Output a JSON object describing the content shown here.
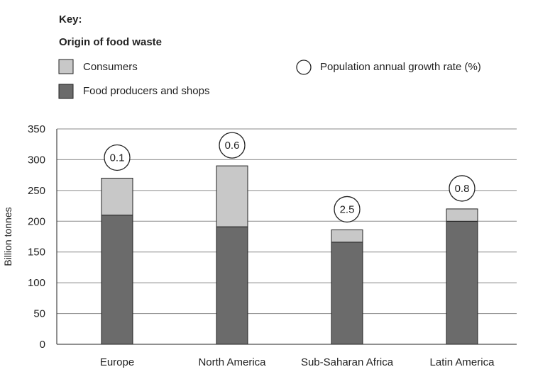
{
  "key": {
    "title": "Key:",
    "subtitle": "Origin of food waste",
    "items": [
      {
        "label": "Consumers",
        "color": "#c8c8c8",
        "shape": "square"
      },
      {
        "label": "Food producers and shops",
        "color": "#6b6b6b",
        "shape": "square"
      },
      {
        "label": "Population annual growth rate (%)",
        "color": "#ffffff",
        "shape": "circle"
      }
    ]
  },
  "chart_data": {
    "type": "bar",
    "stacked": true,
    "categories": [
      "Europe",
      "North America",
      "Sub-Saharan Africa",
      "Latin America"
    ],
    "series": [
      {
        "name": "Food producers and shops",
        "color": "#6b6b6b",
        "values": [
          210,
          191,
          166,
          200
        ]
      },
      {
        "name": "Consumers",
        "color": "#c8c8c8",
        "values": [
          60,
          99,
          20,
          20
        ]
      }
    ],
    "annotations": {
      "name": "Population annual growth rate (%)",
      "values": [
        "0.1",
        "0.6",
        "2.5",
        "0.8"
      ]
    },
    "ylabel": "Billion tonnes",
    "xlabel": "",
    "ylim": [
      0,
      350
    ],
    "yticks": [
      0,
      50,
      100,
      150,
      200,
      250,
      300,
      350
    ],
    "grid": true
  }
}
